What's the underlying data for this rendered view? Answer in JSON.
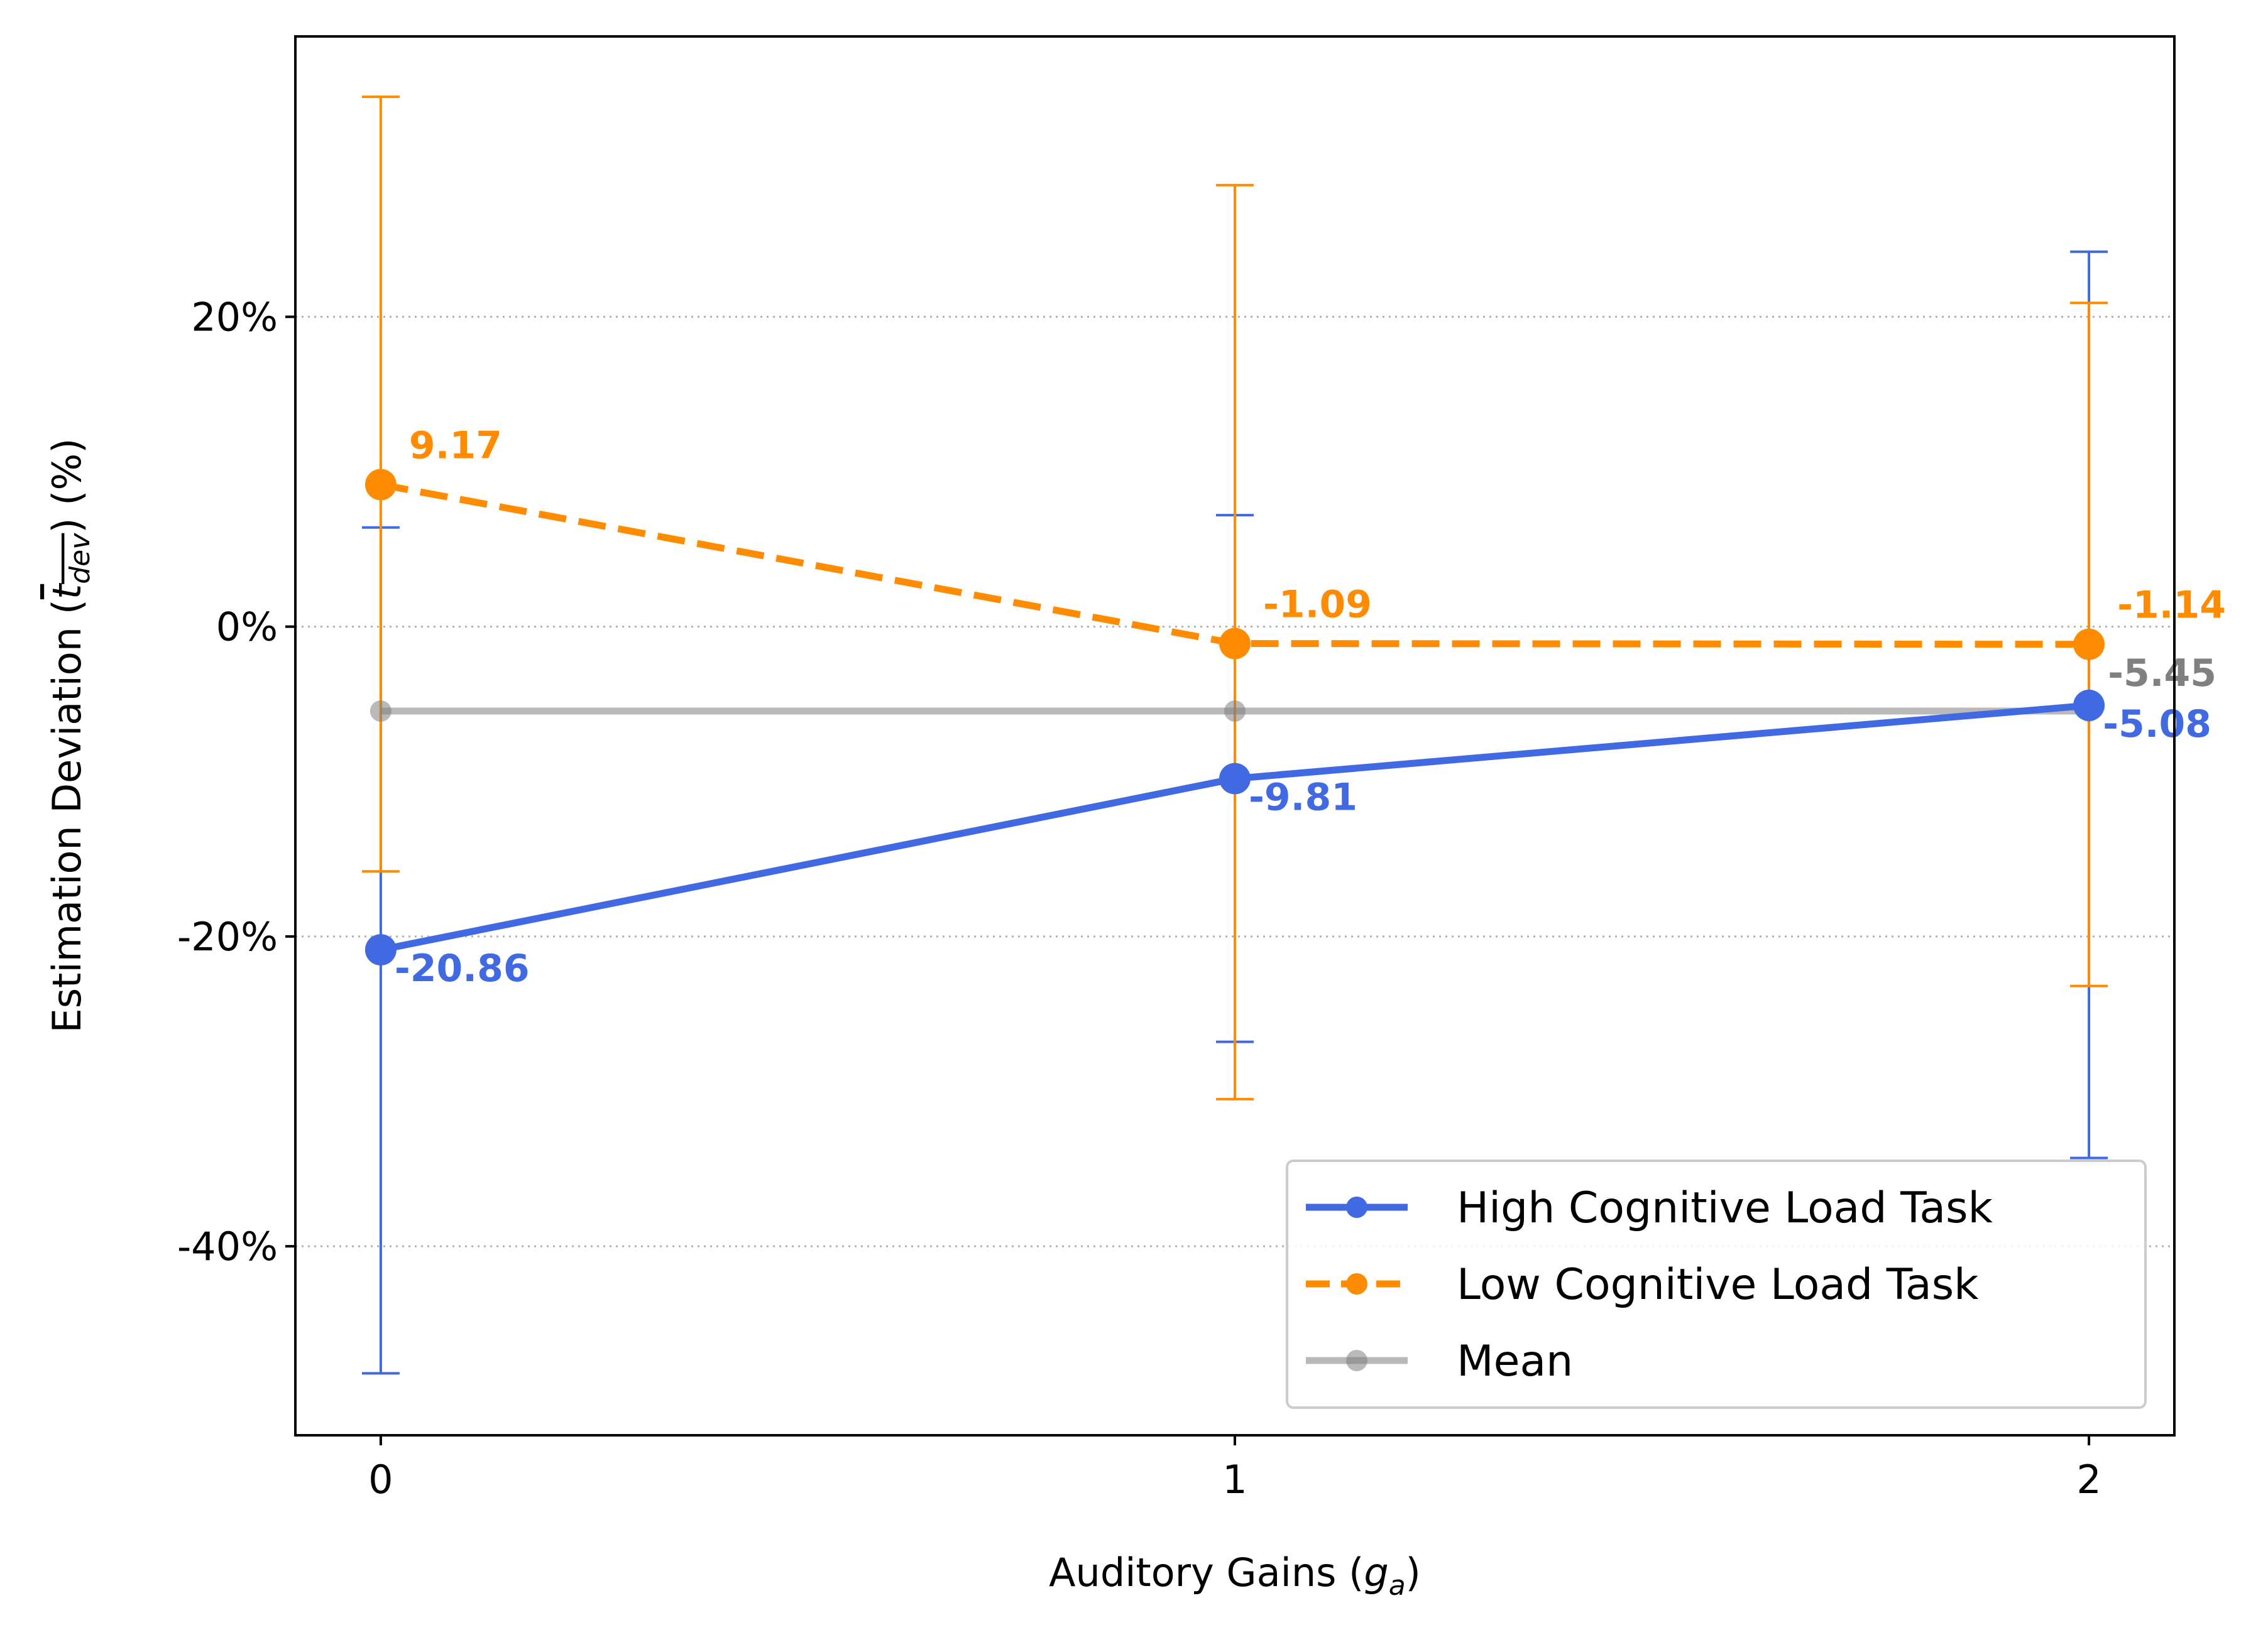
{
  "chart_data": {
    "type": "line",
    "xlabel": "Auditory Gains (g_a)",
    "xlabel_parts": {
      "main": "Auditory Gains (",
      "symbol": "g",
      "sub": "a",
      "end": ")"
    },
    "ylabel": "Estimation Deviation (t_dev) (%)",
    "ylabel_parts": {
      "main": "Estimation Deviation (",
      "symbol": "t",
      "sub": "dev",
      "end": ") (%)"
    },
    "x": [
      0,
      1,
      2
    ],
    "x_ticks": [
      {
        "value": 0,
        "label": "0"
      },
      {
        "value": 1,
        "label": "1"
      },
      {
        "value": 2,
        "label": "2"
      }
    ],
    "y_ticks": [
      {
        "value": 20,
        "label": "20%"
      },
      {
        "value": 0,
        "label": "0%"
      },
      {
        "value": -20,
        "label": "-20%"
      },
      {
        "value": -40,
        "label": "-40%"
      }
    ],
    "xlim": [
      -0.1,
      2.1
    ],
    "ylim": [
      -52.2,
      38.1
    ],
    "grid": "horizontal dotted",
    "legend_position": "lower right",
    "series": [
      {
        "name": "High Cognitive Load Task",
        "values": [
          -20.86,
          -9.81,
          -5.08
        ],
        "value_labels": [
          "-20.86",
          "-9.81",
          "-5.08"
        ],
        "error_lower": [
          -48.2,
          -26.8,
          -34.3
        ],
        "error_upper": [
          6.4,
          7.2,
          24.2
        ],
        "color": "#4169e1",
        "line_style": "solid",
        "marker": "circle"
      },
      {
        "name": "Low Cognitive Load Task",
        "values": [
          9.17,
          -1.09,
          -1.14
        ],
        "value_labels": [
          "9.17",
          "-1.09",
          "-1.14"
        ],
        "error_lower": [
          -15.8,
          -30.5,
          -23.2
        ],
        "error_upper": [
          34.2,
          28.5,
          20.9
        ],
        "color": "#ff8c00",
        "line_style": "dashed",
        "marker": "circle"
      },
      {
        "name": "Mean",
        "values": [
          -5.45,
          -5.45,
          -5.45
        ],
        "value_labels": [
          "",
          "",
          "-5.45"
        ],
        "color": "#808080",
        "line_style": "solid",
        "marker": "circle",
        "alpha": 0.55
      }
    ]
  }
}
